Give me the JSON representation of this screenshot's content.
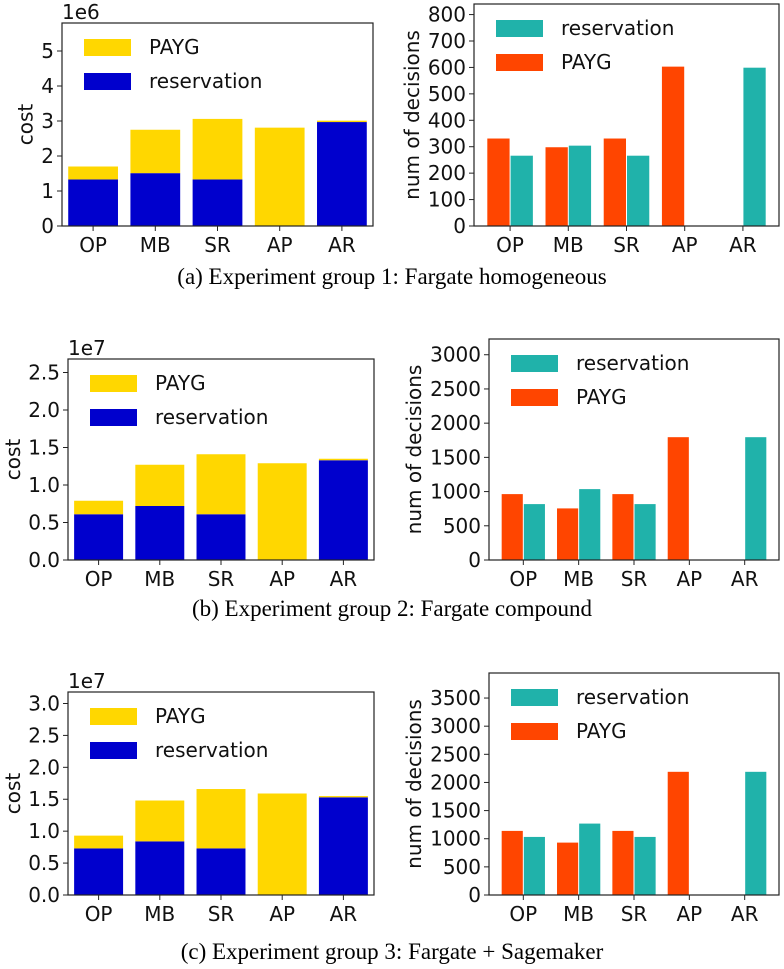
{
  "chart_data": [
    {
      "id": "g1-cost",
      "type": "bar",
      "stacked": true,
      "categories": [
        "OP",
        "MB",
        "SR",
        "AP",
        "AR"
      ],
      "ylabel": "cost",
      "offset_text": "1e6",
      "ylim": [
        0,
        5.8
      ],
      "yticks": [
        "0",
        "1",
        "2",
        "3",
        "4",
        "5"
      ],
      "legend": {
        "placement": "upper-left",
        "order": [
          "PAYG",
          "reservation"
        ]
      },
      "series": [
        {
          "name": "reservation",
          "color": "#0000CD",
          "values": [
            1.33,
            1.51,
            1.33,
            0,
            2.97
          ]
        },
        {
          "name": "PAYG",
          "color": "#FFD700",
          "values": [
            0.37,
            1.24,
            1.73,
            2.81,
            0.04
          ]
        }
      ]
    },
    {
      "id": "g1-decisions",
      "type": "bar",
      "stacked": false,
      "categories": [
        "OP",
        "MB",
        "SR",
        "AP",
        "AR"
      ],
      "ylabel": "num of decisions",
      "ylim": [
        0,
        840
      ],
      "yticks": [
        "0",
        "100",
        "200",
        "300",
        "400",
        "500",
        "600",
        "700",
        "800"
      ],
      "legend": {
        "placement": "upper-left",
        "order": [
          "reservation",
          "PAYG"
        ]
      },
      "series": [
        {
          "name": "PAYG",
          "color": "#FF4500",
          "values": [
            331,
            298,
            331,
            603,
            0
          ]
        },
        {
          "name": "reservation",
          "color": "#20B2AA",
          "values": [
            266,
            304,
            266,
            0,
            599
          ]
        }
      ]
    },
    {
      "id": "g2-cost",
      "type": "bar",
      "stacked": true,
      "categories": [
        "OP",
        "MB",
        "SR",
        "AP",
        "AR"
      ],
      "ylabel": "cost",
      "offset_text": "1e7",
      "ylim": [
        0,
        2.68
      ],
      "yticks": [
        "0.0",
        "0.5",
        "1.0",
        "1.5",
        "2.0",
        "2.5"
      ],
      "legend": {
        "placement": "upper-left",
        "order": [
          "PAYG",
          "reservation"
        ]
      },
      "series": [
        {
          "name": "reservation",
          "color": "#0000CD",
          "values": [
            0.61,
            0.72,
            0.61,
            0,
            1.33
          ]
        },
        {
          "name": "PAYG",
          "color": "#FFD700",
          "values": [
            0.18,
            0.55,
            0.8,
            1.29,
            0.02
          ]
        }
      ]
    },
    {
      "id": "g2-decisions",
      "type": "bar",
      "stacked": false,
      "categories": [
        "OP",
        "MB",
        "SR",
        "AP",
        "AR"
      ],
      "ylabel": "num of decisions",
      "ylim": [
        0,
        3230
      ],
      "yticks": [
        "0",
        "500",
        "1000",
        "1500",
        "2000",
        "2500",
        "3000"
      ],
      "legend": {
        "placement": "upper-left",
        "order": [
          "reservation",
          "PAYG"
        ]
      },
      "series": [
        {
          "name": "PAYG",
          "color": "#FF4500",
          "values": [
            963,
            754,
            963,
            1795,
            0
          ]
        },
        {
          "name": "reservation",
          "color": "#20B2AA",
          "values": [
            817,
            1036,
            817,
            0,
            1795
          ]
        }
      ]
    },
    {
      "id": "g3-cost",
      "type": "bar",
      "stacked": true,
      "categories": [
        "OP",
        "MB",
        "SR",
        "AP",
        "AR"
      ],
      "ylabel": "cost",
      "offset_text": "1e7",
      "ylim": [
        0,
        3.18
      ],
      "yticks": [
        "0.0",
        "0.5",
        "1.0",
        "1.5",
        "2.0",
        "2.5",
        "3.0"
      ],
      "legend": {
        "placement": "upper-left",
        "order": [
          "PAYG",
          "reservation"
        ]
      },
      "series": [
        {
          "name": "reservation",
          "color": "#0000CD",
          "values": [
            0.73,
            0.84,
            0.73,
            0,
            1.53
          ]
        },
        {
          "name": "PAYG",
          "color": "#FFD700",
          "values": [
            0.2,
            0.64,
            0.93,
            1.59,
            0.02
          ]
        }
      ]
    },
    {
      "id": "g3-decisions",
      "type": "bar",
      "stacked": false,
      "categories": [
        "OP",
        "MB",
        "SR",
        "AP",
        "AR"
      ],
      "ylabel": "num of decisions",
      "ylim": [
        0,
        3945
      ],
      "yticks": [
        "0",
        "500",
        "1000",
        "1500",
        "2000",
        "2500",
        "3000",
        "3500"
      ],
      "legend": {
        "placement": "upper-left",
        "order": [
          "reservation",
          "PAYG"
        ]
      },
      "series": [
        {
          "name": "PAYG",
          "color": "#FF4500",
          "values": [
            1139,
            931,
            1139,
            2189,
            0
          ]
        },
        {
          "name": "reservation",
          "color": "#20B2AA",
          "values": [
            1032,
            1269,
            1032,
            0,
            2189
          ]
        }
      ]
    }
  ],
  "captions": {
    "a": "(a)  Experiment group 1: Fargate homogeneous",
    "b": "(b)  Experiment group 2: Fargate compound",
    "c": "(c)  Experiment group 3: Fargate + Sagemaker"
  }
}
